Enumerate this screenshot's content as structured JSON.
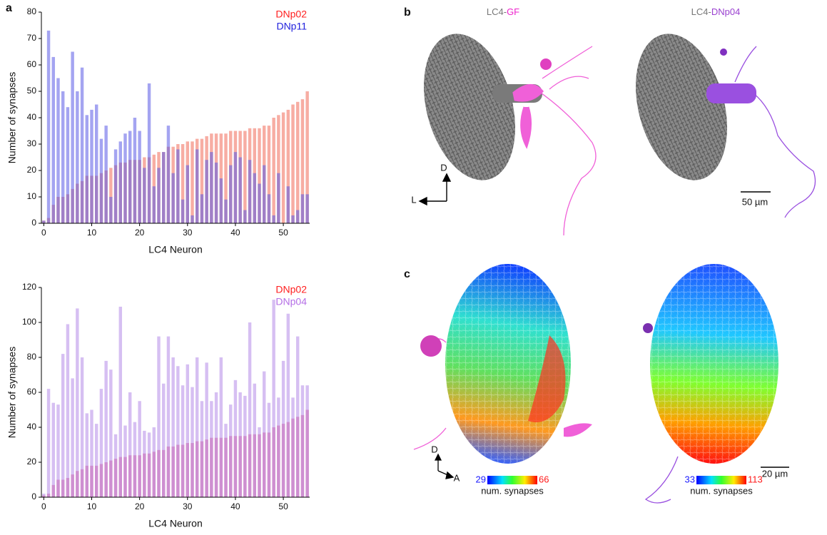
{
  "chart_data": [
    {
      "type": "bar",
      "xlabel": "LC4 Neuron",
      "ylabel": "Number of synapses",
      "xlim": [
        -0.5,
        55.5
      ],
      "xticks": [
        0,
        10,
        20,
        30,
        40,
        50
      ],
      "ylim": [
        0,
        80
      ],
      "yticks": [
        0,
        10,
        20,
        30,
        40,
        50,
        60,
        70,
        80
      ],
      "series": [
        {
          "name": "DNp02",
          "color": "#f06a58",
          "legend_color": "#ff2020",
          "values": [
            1,
            2,
            7,
            10,
            10,
            11,
            13,
            15,
            16,
            18,
            18,
            18,
            19,
            20,
            21,
            22,
            23,
            23,
            24,
            24,
            24,
            25,
            25,
            26,
            27,
            27,
            29,
            29,
            30,
            30,
            31,
            31,
            32,
            32,
            33,
            34,
            34,
            34,
            34,
            35,
            35,
            35,
            35,
            36,
            36,
            36,
            37,
            37,
            40,
            41,
            42,
            43,
            45,
            46,
            47,
            50
          ]
        },
        {
          "name": "DNp11",
          "color": "#5a5ae6",
          "legend_color": "#2222dd",
          "values": [
            1,
            73,
            63,
            55,
            50,
            44,
            65,
            50,
            59,
            41,
            43,
            45,
            32,
            37,
            10,
            28,
            31,
            34,
            35,
            40,
            35,
            21,
            53,
            14,
            21,
            27,
            37,
            19,
            28,
            9,
            22,
            3,
            28,
            11,
            24,
            27,
            23,
            17,
            9,
            22,
            27,
            25,
            5,
            24,
            19,
            15,
            22,
            11,
            3,
            19,
            0,
            14,
            3,
            5,
            11,
            11
          ]
        }
      ]
    },
    {
      "type": "bar",
      "xlabel": "LC4 Neuron",
      "ylabel": "Number of synapses",
      "xlim": [
        -0.5,
        55.5
      ],
      "xticks": [
        0,
        10,
        20,
        30,
        40,
        50
      ],
      "ylim": [
        0,
        120
      ],
      "yticks": [
        0,
        20,
        40,
        60,
        80,
        100,
        120
      ],
      "series": [
        {
          "name": "DNp02",
          "color": "#e0407a",
          "legend_color": "#ff2020",
          "values": [
            1,
            2,
            7,
            10,
            10,
            11,
            13,
            15,
            16,
            18,
            18,
            18,
            19,
            20,
            21,
            22,
            23,
            23,
            24,
            24,
            24,
            25,
            25,
            26,
            27,
            27,
            29,
            29,
            30,
            30,
            31,
            31,
            32,
            32,
            33,
            34,
            34,
            34,
            34,
            35,
            35,
            35,
            35,
            36,
            36,
            36,
            37,
            37,
            40,
            41,
            42,
            43,
            45,
            46,
            47,
            50
          ]
        },
        {
          "name": "DNp04",
          "color": "#b48ae8",
          "legend_color": "#b46ee6",
          "values": [
            2,
            62,
            54,
            53,
            82,
            99,
            68,
            108,
            80,
            48,
            50,
            42,
            62,
            78,
            73,
            36,
            109,
            41,
            60,
            43,
            55,
            38,
            37,
            40,
            92,
            65,
            92,
            80,
            75,
            64,
            76,
            63,
            80,
            55,
            77,
            55,
            60,
            80,
            42,
            53,
            67,
            60,
            58,
            100,
            65,
            40,
            72,
            54,
            113,
            57,
            78,
            105,
            57,
            92,
            64,
            64
          ]
        }
      ]
    }
  ],
  "figure": {
    "panel_labels": [
      "a",
      "b",
      "c"
    ],
    "b": {
      "left_title": [
        "LC4-",
        "GF"
      ],
      "right_title": [
        "LC4-",
        "DNp04"
      ],
      "axis_d": "D",
      "axis_l": "L",
      "scale": "50 µm"
    },
    "c": {
      "axis_d": "D",
      "axis_a": "A",
      "scale": "20 µm",
      "left_bar": {
        "min": "29",
        "max": "66",
        "label": "num. synapses"
      },
      "right_bar": {
        "min": "33",
        "max": "113",
        "label": "num. synapses"
      }
    }
  }
}
